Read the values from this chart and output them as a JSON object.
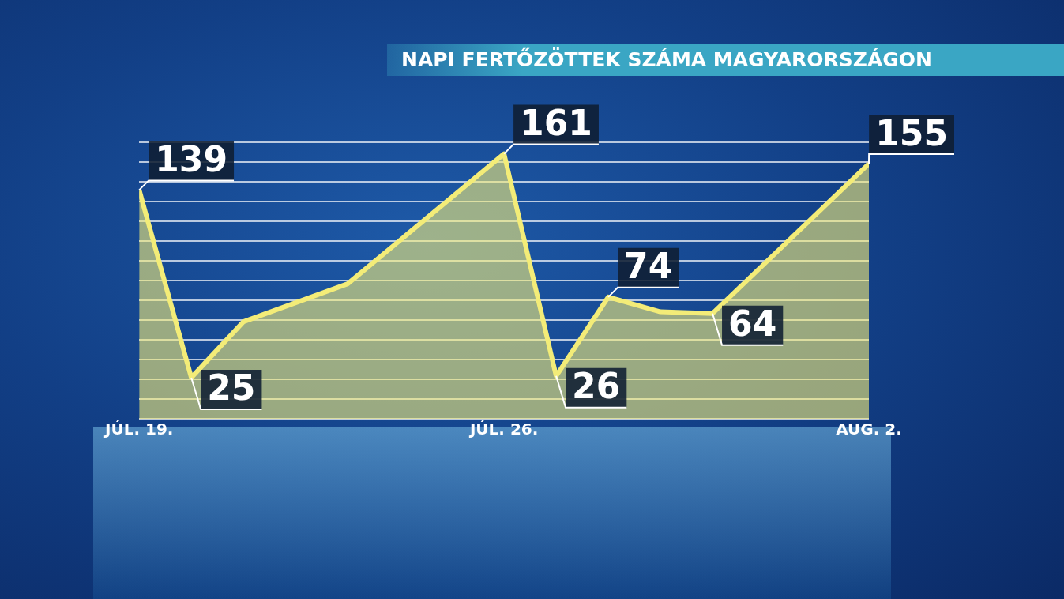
{
  "chart_data": {
    "type": "area",
    "title": "NAPI FERTŐZÖTTEK SZÁMA MAGYARORSZÁGON",
    "x": [
      "--07-19",
      "--07-20",
      "--07-21",
      "--07-23",
      "--07-26",
      "--07-27",
      "--07-28",
      "--07-29",
      "--07-30",
      "--08-02"
    ],
    "series": [
      {
        "color": "#f3ec78",
        "values": [
          139,
          25,
          59,
          82,
          161,
          26,
          74,
          65,
          64,
          155
        ],
        "value_labels": [
          "139",
          "25",
          null,
          null,
          "161",
          "26",
          "74",
          null,
          "64",
          "155"
        ]
      }
    ],
    "xlim": [
      "--07-19",
      "--08-02"
    ],
    "xticks": [
      {
        "value": "--07-19",
        "label": "JÚL. 19."
      },
      {
        "value": "--07-26",
        "label": "JÚL. 26."
      },
      {
        "value": "--08-02",
        "label": "AUG. 2."
      }
    ],
    "ylim": [
      0,
      168
    ],
    "yticks": [
      {
        "value": 0,
        "label": null
      },
      {
        "value": 12,
        "label": null
      },
      {
        "value": 24,
        "label": null
      },
      {
        "value": 36,
        "label": null
      },
      {
        "value": 48,
        "label": null
      },
      {
        "value": 60,
        "label": null
      },
      {
        "value": 72,
        "label": null
      },
      {
        "value": 84,
        "label": null
      },
      {
        "value": 96,
        "label": null
      },
      {
        "value": 108,
        "label": null
      },
      {
        "value": 120,
        "label": null
      },
      {
        "value": 132,
        "label": null
      },
      {
        "value": 144,
        "label": null
      },
      {
        "value": 156,
        "label": null
      },
      {
        "value": 168,
        "label": null
      }
    ],
    "grid": "y",
    "tick_labels": "x",
    "marker": "none"
  }
}
